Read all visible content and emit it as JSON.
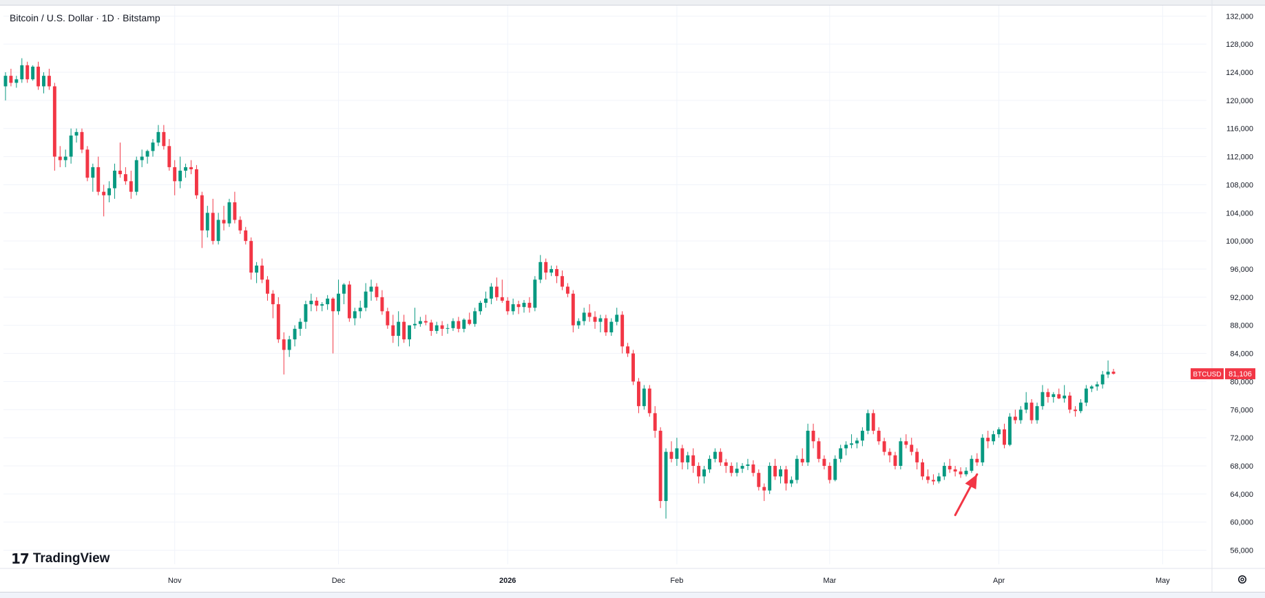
{
  "header": {
    "symbol_title": "Bitcoin / U.S. Dollar · 1D · Bitstamp"
  },
  "brand": {
    "name": "TradingView",
    "mark": "17"
  },
  "price_badge": {
    "symbol": "BTCUSD",
    "price": "81,106",
    "color": "#f23645"
  },
  "colors": {
    "up": "#089981",
    "down": "#f23645",
    "grid": "#f0f3fa",
    "axis_text": "#131722",
    "annotation": "#f23645"
  },
  "icons": {
    "settings": "gear-icon"
  },
  "chart_data": {
    "type": "candlestick",
    "ylim": [
      54000,
      133500
    ],
    "y_ticks": [
      132000,
      128000,
      124000,
      120000,
      116000,
      112000,
      108000,
      104000,
      100000,
      96000,
      92000,
      88000,
      84000,
      80000,
      76000,
      72000,
      68000,
      64000,
      60000,
      56000
    ],
    "y_tick_labels": [
      "132,000",
      "128,000",
      "124,000",
      "120,000",
      "116,000",
      "112,000",
      "108,000",
      "104,000",
      "100,000",
      "96,000",
      "92,000",
      "88,000",
      "84,000",
      "80,000",
      "76,000",
      "72,000",
      "68,000",
      "64,000",
      "60,000",
      "56,000"
    ],
    "x_ticks": [
      {
        "label": "Nov",
        "index": 31
      },
      {
        "label": "Dec",
        "index": 61
      },
      {
        "label": "2026",
        "index": 92
      },
      {
        "label": "Feb",
        "index": 123
      },
      {
        "label": "Mar",
        "index": 151
      },
      {
        "label": "Apr",
        "index": 182
      },
      {
        "label": "May",
        "index": 212
      }
    ],
    "grid": true,
    "annotation": {
      "type": "arrow",
      "from_index": 174,
      "from_value": 61000,
      "to_index": 178,
      "to_value": 66800
    },
    "ohlc": [
      [
        122000,
        124000,
        120000,
        123500
      ],
      [
        123500,
        124500,
        122000,
        122500
      ],
      [
        122500,
        123500,
        121800,
        123000
      ],
      [
        123000,
        126000,
        122500,
        125000
      ],
      [
        125000,
        125500,
        122500,
        123000
      ],
      [
        123000,
        125000,
        122800,
        124800
      ],
      [
        124800,
        125500,
        121500,
        122000
      ],
      [
        122000,
        124000,
        121000,
        123500
      ],
      [
        123500,
        124500,
        121500,
        122000
      ],
      [
        122000,
        122500,
        110000,
        112000
      ],
      [
        112000,
        113500,
        110500,
        111500
      ],
      [
        111500,
        113000,
        110500,
        112000
      ],
      [
        112000,
        116000,
        111000,
        115000
      ],
      [
        115000,
        116000,
        114000,
        115500
      ],
      [
        115500,
        116000,
        112500,
        113000
      ],
      [
        113000,
        113500,
        108500,
        109000
      ],
      [
        109000,
        111000,
        107000,
        110500
      ],
      [
        110500,
        112000,
        106500,
        107000
      ],
      [
        107000,
        108000,
        103500,
        106500
      ],
      [
        106500,
        108500,
        105500,
        107500
      ],
      [
        107500,
        111000,
        106000,
        110000
      ],
      [
        110000,
        114000,
        109000,
        109500
      ],
      [
        109500,
        110500,
        108000,
        108500
      ],
      [
        108500,
        110000,
        106000,
        107000
      ],
      [
        107000,
        112000,
        106500,
        111500
      ],
      [
        111500,
        113000,
        110500,
        112000
      ],
      [
        112000,
        113000,
        111000,
        112800
      ],
      [
        112800,
        114500,
        112000,
        114000
      ],
      [
        114000,
        116500,
        113500,
        115500
      ],
      [
        115500,
        116500,
        113000,
        113500
      ],
      [
        113500,
        114500,
        110000,
        110500
      ],
      [
        110500,
        111500,
        106500,
        108500
      ],
      [
        108500,
        112000,
        107500,
        110000
      ],
      [
        110000,
        111000,
        109000,
        110500
      ],
      [
        110500,
        111500,
        109500,
        110200
      ],
      [
        110200,
        110800,
        106000,
        106500
      ],
      [
        106500,
        107000,
        99000,
        101500
      ],
      [
        101500,
        105000,
        100500,
        104000
      ],
      [
        104000,
        106000,
        99500,
        100000
      ],
      [
        100000,
        104000,
        99500,
        103000
      ],
      [
        103000,
        105000,
        101500,
        102500
      ],
      [
        102500,
        106000,
        102000,
        105500
      ],
      [
        105500,
        107000,
        102500,
        103000
      ],
      [
        103000,
        103500,
        101000,
        101500
      ],
      [
        101500,
        102000,
        99500,
        100000
      ],
      [
        100000,
        100500,
        94500,
        95500
      ],
      [
        95500,
        97000,
        94000,
        96500
      ],
      [
        96500,
        97500,
        94000,
        94500
      ],
      [
        94500,
        95000,
        91500,
        92500
      ],
      [
        92500,
        93000,
        89000,
        91000
      ],
      [
        91000,
        92000,
        85500,
        86000
      ],
      [
        86000,
        87000,
        81000,
        84500
      ],
      [
        84500,
        86500,
        83500,
        86000
      ],
      [
        86000,
        88000,
        85000,
        87500
      ],
      [
        87500,
        89000,
        86500,
        88500
      ],
      [
        88500,
        91500,
        87500,
        91000
      ],
      [
        91000,
        92500,
        90000,
        91500
      ],
      [
        91500,
        92000,
        90000,
        90800
      ],
      [
        90800,
        91300,
        90000,
        91000
      ],
      [
        91000,
        92300,
        90200,
        91800
      ],
      [
        91800,
        92000,
        84000,
        90000
      ],
      [
        90000,
        94500,
        89500,
        92500
      ],
      [
        92500,
        94000,
        91000,
        93800
      ],
      [
        93800,
        94300,
        88500,
        89000
      ],
      [
        89000,
        90500,
        88000,
        90000
      ],
      [
        90000,
        91500,
        89000,
        90500
      ],
      [
        90500,
        94000,
        90000,
        92800
      ],
      [
        92800,
        94500,
        91500,
        93500
      ],
      [
        93500,
        94000,
        91500,
        92000
      ],
      [
        92000,
        93000,
        89500,
        90000
      ],
      [
        90000,
        90500,
        87500,
        88000
      ],
      [
        88000,
        89500,
        85500,
        86500
      ],
      [
        86500,
        90000,
        85000,
        88500
      ],
      [
        88500,
        89500,
        85500,
        86000
      ],
      [
        86000,
        88000,
        85000,
        88000
      ],
      [
        88000,
        90500,
        87500,
        88200
      ],
      [
        88200,
        89200,
        87800,
        88600
      ],
      [
        88600,
        89500,
        88000,
        88400
      ],
      [
        88400,
        88800,
        86500,
        87200
      ],
      [
        87200,
        88500,
        86800,
        88000
      ],
      [
        88000,
        88600,
        86500,
        87500
      ],
      [
        87500,
        88200,
        86800,
        87600
      ],
      [
        87600,
        89000,
        87200,
        88600
      ],
      [
        88600,
        89200,
        87000,
        87500
      ],
      [
        87500,
        89000,
        87000,
        88800
      ],
      [
        88800,
        89800,
        88000,
        88200
      ],
      [
        88200,
        90500,
        87800,
        90000
      ],
      [
        90000,
        91500,
        89500,
        91200
      ],
      [
        91200,
        92800,
        90500,
        91800
      ],
      [
        91800,
        94000,
        91000,
        93500
      ],
      [
        93500,
        94800,
        91500,
        92000
      ],
      [
        92000,
        94500,
        91200,
        91500
      ],
      [
        91500,
        92000,
        89500,
        90000
      ],
      [
        90000,
        91800,
        89500,
        91000
      ],
      [
        91000,
        91500,
        89600,
        90600
      ],
      [
        90600,
        91600,
        89800,
        91200
      ],
      [
        91200,
        92000,
        89800,
        90500
      ],
      [
        90500,
        95000,
        90000,
        94500
      ],
      [
        94500,
        98000,
        94000,
        97000
      ],
      [
        97000,
        97500,
        94500,
        95500
      ],
      [
        95500,
        96500,
        95000,
        96000
      ],
      [
        96000,
        96500,
        94000,
        95000
      ],
      [
        95000,
        95800,
        93000,
        93500
      ],
      [
        93500,
        94000,
        92000,
        92500
      ],
      [
        92500,
        93000,
        87000,
        88000
      ],
      [
        88000,
        89000,
        87500,
        88600
      ],
      [
        88600,
        90500,
        88000,
        89800
      ],
      [
        89800,
        91000,
        88500,
        89200
      ],
      [
        89200,
        90000,
        87500,
        88500
      ],
      [
        88500,
        89500,
        87000,
        89000
      ],
      [
        89000,
        89500,
        86500,
        87000
      ],
      [
        87000,
        89000,
        86500,
        88500
      ],
      [
        88500,
        90500,
        88000,
        89500
      ],
      [
        89500,
        90000,
        84000,
        85000
      ],
      [
        85000,
        85500,
        83500,
        84000
      ],
      [
        84000,
        84500,
        79500,
        80000
      ],
      [
        80000,
        80500,
        75500,
        76500
      ],
      [
        76500,
        79500,
        76000,
        79000
      ],
      [
        79000,
        79500,
        75000,
        75500
      ],
      [
        75500,
        76500,
        72000,
        73000
      ],
      [
        73000,
        73500,
        62000,
        63000
      ],
      [
        63000,
        70500,
        60500,
        70000
      ],
      [
        70000,
        71500,
        68500,
        69000
      ],
      [
        69000,
        72000,
        68000,
        70500
      ],
      [
        70500,
        71000,
        67500,
        68500
      ],
      [
        68500,
        70000,
        67500,
        69500
      ],
      [
        69500,
        70500,
        67000,
        68000
      ],
      [
        68000,
        68500,
        65500,
        66500
      ],
      [
        66500,
        68000,
        65500,
        67500
      ],
      [
        67500,
        69500,
        67000,
        69000
      ],
      [
        69000,
        70500,
        68500,
        70000
      ],
      [
        70000,
        70500,
        68000,
        68500
      ],
      [
        68500,
        69000,
        67000,
        68000
      ],
      [
        68000,
        68500,
        66500,
        67000
      ],
      [
        67000,
        68500,
        66500,
        67600
      ],
      [
        67600,
        68400,
        67000,
        68000
      ],
      [
        68000,
        69000,
        67400,
        68200
      ],
      [
        68200,
        68800,
        66500,
        67000
      ],
      [
        67000,
        67500,
        64500,
        65000
      ],
      [
        65000,
        65500,
        63000,
        64500
      ],
      [
        64500,
        68500,
        64000,
        68000
      ],
      [
        68000,
        69000,
        66000,
        66500
      ],
      [
        66500,
        68000,
        65500,
        67500
      ],
      [
        67500,
        68000,
        64500,
        65500
      ],
      [
        65500,
        66500,
        65000,
        66000
      ],
      [
        66000,
        69500,
        65500,
        69000
      ],
      [
        69000,
        70500,
        68000,
        68500
      ],
      [
        68500,
        74000,
        68000,
        73000
      ],
      [
        73000,
        74000,
        70500,
        71500
      ],
      [
        71500,
        72000,
        68500,
        69000
      ],
      [
        69000,
        69500,
        67500,
        68000
      ],
      [
        68000,
        68500,
        65500,
        66000
      ],
      [
        66000,
        69500,
        65800,
        69000
      ],
      [
        69000,
        71000,
        68500,
        70500
      ],
      [
        70500,
        71500,
        69500,
        71000
      ],
      [
        71000,
        72500,
        70500,
        71200
      ],
      [
        71200,
        72000,
        70500,
        71600
      ],
      [
        71600,
        73500,
        70800,
        73000
      ],
      [
        73000,
        76000,
        72500,
        75500
      ],
      [
        75500,
        76000,
        72500,
        73000
      ],
      [
        73000,
        73500,
        71000,
        71500
      ],
      [
        71500,
        72000,
        69500,
        70000
      ],
      [
        70000,
        70500,
        68500,
        69500
      ],
      [
        69500,
        70000,
        67500,
        68000
      ],
      [
        68000,
        72000,
        67500,
        71500
      ],
      [
        71500,
        72500,
        70500,
        71000
      ],
      [
        71000,
        72000,
        69500,
        70000
      ],
      [
        70000,
        70500,
        67500,
        68500
      ],
      [
        68500,
        69000,
        66000,
        66500
      ],
      [
        66500,
        67500,
        65500,
        66000
      ],
      [
        66000,
        66800,
        65300,
        65800
      ],
      [
        65800,
        67000,
        65500,
        66500
      ],
      [
        66500,
        68500,
        66000,
        68000
      ],
      [
        68000,
        69000,
        67000,
        67500
      ],
      [
        67500,
        68000,
        66500,
        67200
      ],
      [
        67200,
        67800,
        66300,
        66800
      ],
      [
        66800,
        67800,
        66500,
        67300
      ],
      [
        67300,
        69500,
        67000,
        69000
      ],
      [
        69000,
        69800,
        68000,
        68500
      ],
      [
        68500,
        72500,
        68000,
        72000
      ],
      [
        72000,
        73000,
        70500,
        71500
      ],
      [
        71500,
        73000,
        71000,
        72500
      ],
      [
        72500,
        73500,
        72000,
        73200
      ],
      [
        73200,
        74000,
        70500,
        71000
      ],
      [
        71000,
        75500,
        70800,
        75000
      ],
      [
        75000,
        76000,
        74000,
        74500
      ],
      [
        74500,
        76500,
        74000,
        76000
      ],
      [
        76000,
        78500,
        75500,
        77000
      ],
      [
        77000,
        77500,
        74000,
        74500
      ],
      [
        74500,
        77000,
        74000,
        76500
      ],
      [
        76500,
        79500,
        76000,
        78500
      ],
      [
        78500,
        79000,
        77000,
        77800
      ],
      [
        77800,
        78500,
        77000,
        78200
      ],
      [
        78200,
        79000,
        77500,
        77600
      ],
      [
        77600,
        79500,
        77000,
        78000
      ],
      [
        78000,
        78500,
        75500,
        76000
      ],
      [
        76000,
        76500,
        75000,
        75800
      ],
      [
        75800,
        77500,
        75500,
        77000
      ],
      [
        77000,
        79500,
        76500,
        79000
      ],
      [
        79000,
        79500,
        78500,
        79300
      ],
      [
        79300,
        80000,
        78700,
        79600
      ],
      [
        79600,
        81500,
        79000,
        81000
      ],
      [
        81000,
        83000,
        80500,
        81400
      ],
      [
        81400,
        81800,
        81000,
        81106
      ]
    ]
  }
}
